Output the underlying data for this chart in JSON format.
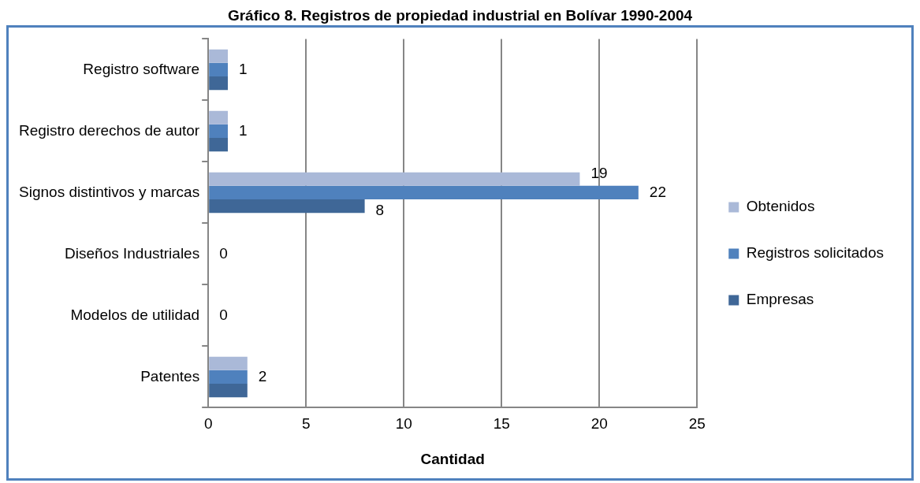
{
  "chart_data": {
    "type": "bar",
    "orientation": "horizontal",
    "title": "Gráfico 8. Registros de propiedad industrial en Bolívar 1990-2004",
    "xlabel": "Cantidad",
    "categories": [
      "Registro software",
      "Registro derechos de autor",
      "Signos distintivos y marcas",
      "Diseños Industriales",
      "Modelos de utilidad",
      "Patentes"
    ],
    "series": [
      {
        "name": "Obtenidos",
        "color": "#aab9d8",
        "values": [
          1,
          1,
          19,
          0,
          0,
          2
        ],
        "value_labels": [
          null,
          null,
          "19",
          null,
          null,
          null
        ]
      },
      {
        "name": "Registros solicitados",
        "color": "#4f81bd",
        "values": [
          1,
          1,
          22,
          0,
          0,
          2
        ],
        "value_labels": [
          "1",
          "1",
          "22",
          "0",
          "0",
          "2"
        ]
      },
      {
        "name": "Empresas",
        "color": "#3f6797",
        "values": [
          1,
          1,
          8,
          0,
          0,
          2
        ],
        "value_labels": [
          null,
          null,
          "8",
          null,
          null,
          null
        ]
      }
    ],
    "xlim": [
      0,
      25
    ],
    "xticks": [
      0,
      5,
      10,
      15,
      20,
      25
    ],
    "grid": "x",
    "legend": "right"
  }
}
